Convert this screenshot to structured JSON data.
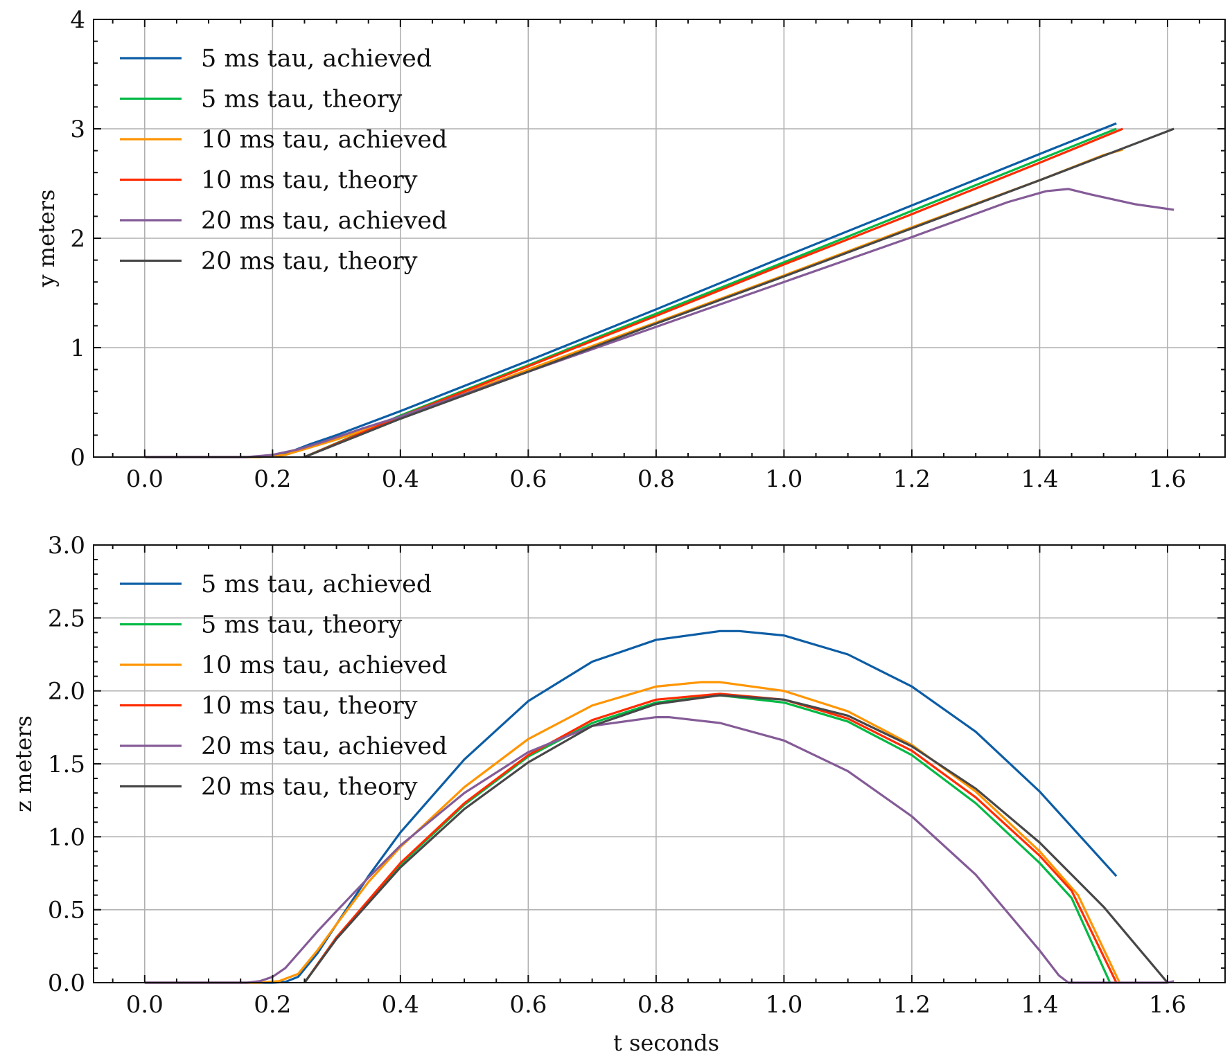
{
  "chart_data": [
    {
      "type": "line",
      "id": "top",
      "xlabel": "",
      "ylabel": "y meters",
      "xlim": [
        -0.08,
        1.69
      ],
      "ylim": [
        0,
        4
      ],
      "xticks": [
        "0.0",
        "0.2",
        "0.4",
        "0.6",
        "0.8",
        "1.0",
        "1.2",
        "1.4",
        "1.6"
      ],
      "yticks": [
        "0",
        "1",
        "2",
        "3",
        "4"
      ],
      "grid": true,
      "legend": "top-left",
      "series": [
        {
          "name": "5 ms tau, achieved",
          "color": "#0C5DA5",
          "x": [
            0,
            0.18,
            0.22,
            0.26,
            0.3,
            0.4,
            0.6,
            0.8,
            1.0,
            1.2,
            1.4,
            1.52
          ],
          "y": [
            0,
            0,
            0.03,
            0.12,
            0.2,
            0.42,
            0.88,
            1.35,
            1.83,
            2.3,
            2.77,
            3.05
          ]
        },
        {
          "name": "5 ms tau, theory",
          "color": "#00B945",
          "x": [
            0.25,
            0.4,
            0.6,
            0.8,
            1.0,
            1.2,
            1.4,
            1.52
          ],
          "y": [
            0.0,
            0.38,
            0.84,
            1.31,
            1.78,
            2.25,
            2.72,
            3.0
          ]
        },
        {
          "name": "10 ms tau, achieved",
          "color": "#FF9500",
          "x": [
            0,
            0.18,
            0.22,
            0.26,
            0.3,
            0.4,
            0.6,
            0.8,
            1.0,
            1.2,
            1.4,
            1.5,
            1.53
          ],
          "y": [
            0,
            0,
            0.02,
            0.09,
            0.16,
            0.36,
            0.8,
            1.23,
            1.66,
            2.1,
            2.53,
            2.76,
            2.81
          ]
        },
        {
          "name": "10 ms tau, theory",
          "color": "#FF2C00",
          "x": [
            0.25,
            0.4,
            0.6,
            0.8,
            1.0,
            1.2,
            1.4,
            1.53
          ],
          "y": [
            0.0,
            0.37,
            0.83,
            1.29,
            1.76,
            2.22,
            2.69,
            3.0
          ]
        },
        {
          "name": "20 ms tau, achieved",
          "color": "#845B97",
          "x": [
            0,
            0.16,
            0.2,
            0.24,
            0.28,
            0.34,
            0.4,
            0.6,
            0.8,
            1.0,
            1.2,
            1.35,
            1.41,
            1.445,
            1.48,
            1.55,
            1.61
          ],
          "y": [
            0,
            0,
            0.02,
            0.07,
            0.14,
            0.26,
            0.37,
            0.78,
            1.19,
            1.6,
            2.01,
            2.33,
            2.43,
            2.45,
            2.4,
            2.31,
            2.26
          ]
        },
        {
          "name": "20 ms tau, theory",
          "color": "#474747",
          "x": [
            0.25,
            0.4,
            0.6,
            0.8,
            1.0,
            1.2,
            1.4,
            1.61
          ],
          "y": [
            0.0,
            0.35,
            0.78,
            1.22,
            1.65,
            2.09,
            2.53,
            3.0
          ]
        }
      ]
    },
    {
      "type": "line",
      "id": "bottom",
      "xlabel": "t seconds",
      "ylabel": "z meters",
      "xlim": [
        -0.08,
        1.69
      ],
      "ylim": [
        0,
        3
      ],
      "xticks": [
        "0.0",
        "0.2",
        "0.4",
        "0.6",
        "0.8",
        "1.0",
        "1.2",
        "1.4",
        "1.6"
      ],
      "yticks": [
        "0.0",
        "0.5",
        "1.0",
        "1.5",
        "2.0",
        "2.5",
        "3.0"
      ],
      "grid": true,
      "legend": "top-left",
      "series": [
        {
          "name": "5 ms tau, achieved",
          "color": "#0C5DA5",
          "x": [
            0,
            0.2,
            0.22,
            0.24,
            0.27,
            0.3,
            0.35,
            0.4,
            0.5,
            0.6,
            0.7,
            0.8,
            0.9,
            0.93,
            1.0,
            1.1,
            1.2,
            1.3,
            1.4,
            1.52
          ],
          "y": [
            0,
            0,
            0.005,
            0.04,
            0.2,
            0.4,
            0.73,
            1.03,
            1.53,
            1.93,
            2.2,
            2.35,
            2.41,
            2.41,
            2.38,
            2.25,
            2.03,
            1.72,
            1.31,
            0.73
          ]
        },
        {
          "name": "5 ms tau, theory",
          "color": "#00B945",
          "x": [
            0.25,
            0.3,
            0.4,
            0.5,
            0.6,
            0.7,
            0.8,
            0.9,
            1.0,
            1.1,
            1.2,
            1.3,
            1.4,
            1.45,
            1.51
          ],
          "y": [
            0.0,
            0.31,
            0.81,
            1.22,
            1.55,
            1.78,
            1.92,
            1.97,
            1.92,
            1.79,
            1.56,
            1.23,
            0.82,
            0.58,
            0.0
          ]
        },
        {
          "name": "10 ms tau, achieved",
          "color": "#FF9500",
          "x": [
            0,
            0.18,
            0.21,
            0.24,
            0.27,
            0.3,
            0.35,
            0.4,
            0.5,
            0.6,
            0.7,
            0.8,
            0.87,
            0.9,
            1.0,
            1.1,
            1.2,
            1.3,
            1.4,
            1.46,
            1.525
          ],
          "y": [
            0,
            0,
            0.01,
            0.06,
            0.22,
            0.4,
            0.69,
            0.93,
            1.34,
            1.67,
            1.9,
            2.03,
            2.06,
            2.06,
            2.0,
            1.86,
            1.63,
            1.31,
            0.9,
            0.6,
            0.0
          ]
        },
        {
          "name": "10 ms tau, theory",
          "color": "#FF2C00",
          "x": [
            0.25,
            0.3,
            0.4,
            0.5,
            0.6,
            0.7,
            0.8,
            0.9,
            1.0,
            1.1,
            1.2,
            1.3,
            1.4,
            1.45,
            1.52
          ],
          "y": [
            0.0,
            0.31,
            0.82,
            1.23,
            1.56,
            1.8,
            1.94,
            1.98,
            1.94,
            1.81,
            1.59,
            1.27,
            0.87,
            0.63,
            0.0
          ]
        },
        {
          "name": "20 ms tau, achieved",
          "color": "#845B97",
          "x": [
            0,
            0.16,
            0.18,
            0.2,
            0.22,
            0.24,
            0.27,
            0.3,
            0.35,
            0.4,
            0.5,
            0.6,
            0.7,
            0.8,
            0.82,
            0.9,
            1.0,
            1.1,
            1.2,
            1.3,
            1.4,
            1.43,
            1.445,
            1.6,
            1.61
          ],
          "y": [
            0,
            0,
            0.01,
            0.04,
            0.1,
            0.2,
            0.35,
            0.49,
            0.72,
            0.94,
            1.3,
            1.58,
            1.76,
            1.82,
            1.82,
            1.78,
            1.66,
            1.45,
            1.14,
            0.74,
            0.22,
            0.05,
            0.0,
            0.0,
            0.01
          ]
        },
        {
          "name": "20 ms tau, theory",
          "color": "#474747",
          "x": [
            0.25,
            0.3,
            0.4,
            0.5,
            0.6,
            0.7,
            0.8,
            0.9,
            1.0,
            1.1,
            1.2,
            1.3,
            1.4,
            1.5,
            1.6
          ],
          "y": [
            0.0,
            0.3,
            0.79,
            1.19,
            1.51,
            1.76,
            1.91,
            1.97,
            1.94,
            1.83,
            1.62,
            1.33,
            0.96,
            0.52,
            0.0
          ]
        }
      ]
    }
  ]
}
